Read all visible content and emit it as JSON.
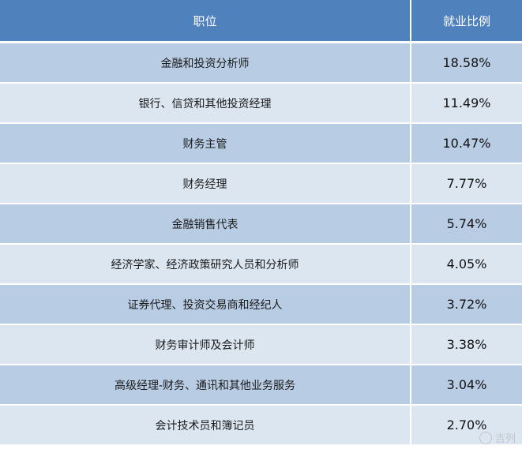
{
  "chart_data": {
    "type": "table",
    "headers": [
      "职位",
      "就业比例"
    ],
    "rows": [
      [
        "金融和投资分析师",
        "18.58%"
      ],
      [
        "银行、信贷和其他投资经理",
        "11.49%"
      ],
      [
        "财务主管",
        "10.47%"
      ],
      [
        "财务经理",
        "7.77%"
      ],
      [
        "金融销售代表",
        "5.74%"
      ],
      [
        "经济学家、经济政策研究人员和分析师",
        "4.05%"
      ],
      [
        "证券代理、投资交易商和经纪人",
        "3.72%"
      ],
      [
        "财务审计师及会计师",
        "3.38%"
      ],
      [
        "高级经理-财务、通讯和其他业务服务",
        "3.04%"
      ],
      [
        "会计技术员和簿记员",
        "2.70%"
      ]
    ],
    "values": [
      18.58,
      11.49,
      10.47,
      7.77,
      5.74,
      4.05,
      3.72,
      3.38,
      3.04,
      2.7
    ]
  },
  "watermark": {
    "text": "吉列"
  },
  "colors": {
    "header_bg": "#4f81bd",
    "row_dark": "#b8cce4",
    "row_light": "#dce6f1"
  }
}
